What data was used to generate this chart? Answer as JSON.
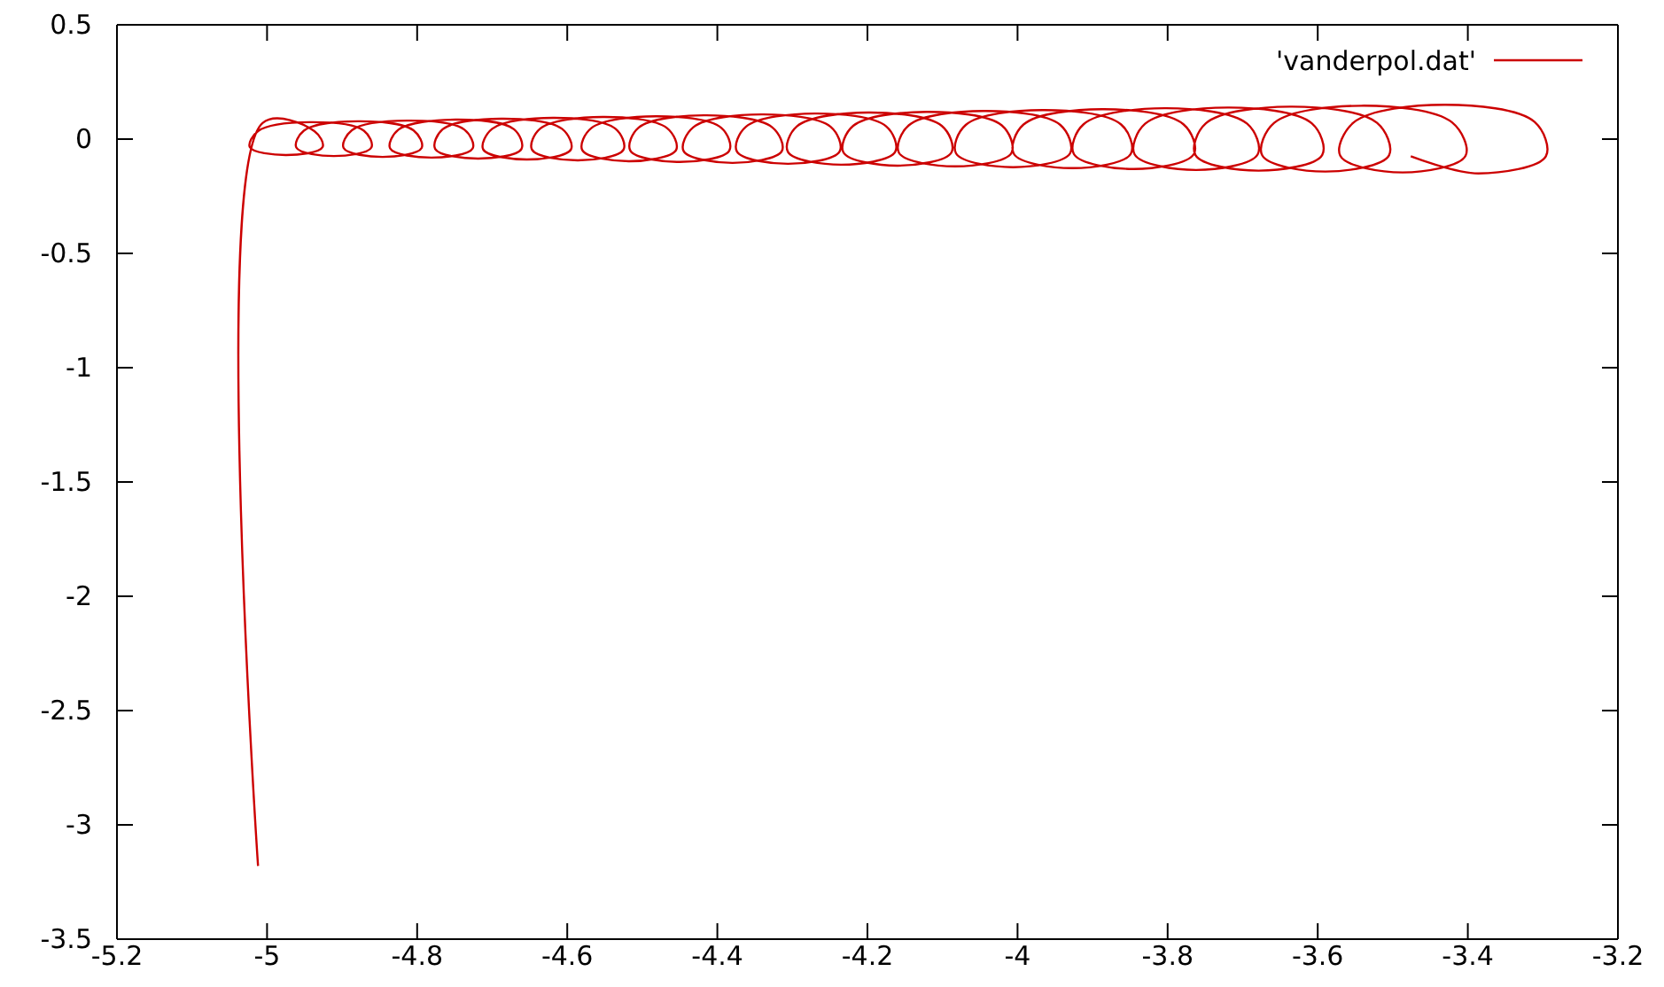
{
  "chart_data": {
    "type": "line",
    "legend": "top right",
    "marker": "none",
    "line_style": "solid",
    "grid": false,
    "xlim": [
      -5.2,
      -3.2
    ],
    "xticks": [
      -5.2,
      -5,
      -4.8,
      -4.6,
      -4.4,
      -4.2,
      -4,
      -3.8,
      -3.6,
      -3.4,
      -3.2
    ],
    "ylim": [
      -3.5,
      0.5
    ],
    "yticks": [
      -3.5,
      -3,
      -2.5,
      -2,
      -1.5,
      -1,
      -0.5,
      0,
      0.5
    ],
    "series": [
      {
        "name": "'vanderpol.dat'",
        "color": "#cc0000",
        "x": [
          -5.012,
          -5.006,
          -4.937,
          -4.926,
          -4.975,
          -5.023,
          -5.012,
          -4.943,
          -4.871,
          -4.861,
          -4.911,
          -4.961,
          -4.951,
          -4.879,
          -4.805,
          -4.794,
          -4.846,
          -4.898,
          -4.887,
          -4.813,
          -4.737,
          -4.726,
          -4.781,
          -4.836,
          -4.825,
          -4.749,
          -4.671,
          -4.661,
          -4.719,
          -4.776,
          -4.766,
          -4.688,
          -4.607,
          -4.595,
          -4.654,
          -4.712,
          -4.7,
          -4.619,
          -4.536,
          -4.525,
          -4.586,
          -4.647,
          -4.636,
          -4.553,
          -4.467,
          -4.455,
          -4.518,
          -4.58,
          -4.568,
          -4.482,
          -4.395,
          -4.384,
          -4.45,
          -4.516,
          -4.505,
          -4.418,
          -4.327,
          -4.314,
          -4.38,
          -4.445,
          -4.432,
          -4.341,
          -4.249,
          -4.237,
          -4.306,
          -4.374,
          -4.362,
          -4.27,
          -4.175,
          -4.163,
          -4.235,
          -4.306,
          -4.294,
          -4.199,
          -4.101,
          -4.088,
          -4.16,
          -4.232,
          -4.219,
          -4.121,
          -4.021,
          -4.008,
          -4.083,
          -4.158,
          -4.145,
          -4.045,
          -3.943,
          -3.93,
          -4.006,
          -4.082,
          -4.069,
          -3.967,
          -3.862,
          -3.849,
          -3.927,
          -4.005,
          -3.992,
          -3.887,
          -3.779,
          -3.765,
          -3.846,
          -3.925,
          -3.912,
          -3.804,
          -3.694,
          -3.68,
          -3.762,
          -3.844,
          -3.83,
          -3.72,
          -3.608,
          -3.594,
          -3.679,
          -3.763,
          -3.749,
          -3.637,
          -3.521,
          -3.505,
          -3.59,
          -3.674,
          -3.658,
          -3.542,
          -3.421,
          -3.403,
          -3.487,
          -3.57,
          -3.552,
          -3.431,
          -3.311,
          -3.296,
          -3.386,
          -3.476
        ],
        "values": [
          -3.18,
          0.07,
          0.035,
          -0.035,
          -0.07,
          -0.035,
          0.035,
          0.074,
          0.037,
          -0.037,
          -0.074,
          -0.037,
          0.037,
          0.078,
          0.039,
          -0.039,
          -0.078,
          -0.039,
          0.039,
          0.081,
          0.041,
          -0.041,
          -0.081,
          -0.041,
          0.041,
          0.085,
          0.043,
          -0.043,
          -0.085,
          -0.043,
          0.043,
          0.089,
          0.045,
          -0.045,
          -0.089,
          -0.045,
          0.045,
          0.093,
          0.046,
          -0.046,
          -0.093,
          -0.046,
          0.046,
          0.097,
          0.048,
          -0.048,
          -0.097,
          -0.048,
          0.048,
          0.1,
          0.05,
          -0.05,
          -0.1,
          -0.05,
          0.05,
          0.104,
          0.052,
          -0.052,
          -0.104,
          -0.052,
          0.052,
          0.108,
          0.054,
          -0.054,
          -0.108,
          -0.054,
          0.054,
          0.112,
          0.056,
          -0.056,
          -0.112,
          -0.056,
          0.056,
          0.116,
          0.058,
          -0.058,
          -0.116,
          -0.058,
          0.058,
          0.119,
          0.06,
          -0.06,
          -0.119,
          -0.06,
          0.06,
          0.123,
          0.062,
          -0.062,
          -0.123,
          -0.062,
          0.062,
          0.127,
          0.064,
          -0.064,
          -0.127,
          -0.064,
          0.064,
          0.131,
          0.065,
          -0.065,
          -0.131,
          -0.065,
          0.065,
          0.135,
          0.067,
          -0.067,
          -0.135,
          -0.067,
          0.067,
          0.138,
          0.069,
          -0.069,
          -0.138,
          -0.069,
          0.069,
          0.142,
          0.071,
          -0.071,
          -0.142,
          -0.071,
          0.071,
          0.146,
          0.073,
          -0.073,
          -0.146,
          -0.073,
          0.073,
          0.15,
          0.075,
          -0.075,
          -0.15,
          -0.075
        ]
      }
    ]
  }
}
